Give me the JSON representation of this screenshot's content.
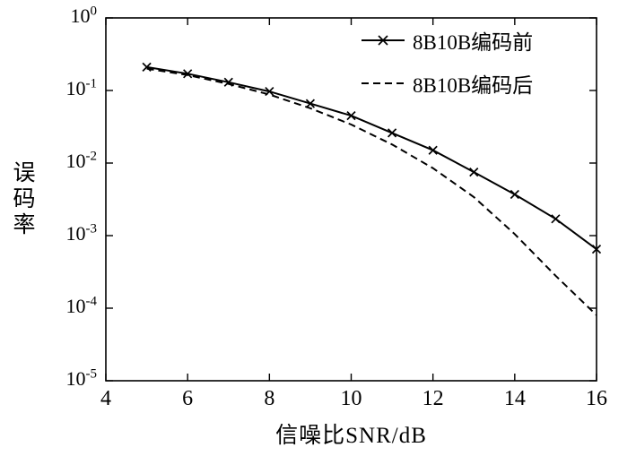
{
  "figure": {
    "background": "#ffffff",
    "line_color": "#000000"
  },
  "chart_data": {
    "type": "line",
    "title": "",
    "xlabel": "信噪比SNR/dB",
    "ylabel": "误码率",
    "xlim": [
      4,
      16
    ],
    "ylim": [
      1e-05,
      1
    ],
    "y_scale": "log",
    "grid": false,
    "legend_position": "top-right",
    "x_ticks": [
      4,
      6,
      8,
      10,
      12,
      14,
      16
    ],
    "y_ticks_exp": [
      0,
      -1,
      -2,
      -3,
      -4,
      -5
    ],
    "x": [
      5,
      6,
      7,
      8,
      9,
      10,
      11,
      12,
      13,
      14,
      15,
      16
    ],
    "series": [
      {
        "name": "8B10B编码前",
        "line_style": "solid",
        "marker": "x",
        "color": "#000000",
        "values": [
          0.21,
          0.17,
          0.13,
          0.097,
          0.066,
          0.045,
          0.026,
          0.015,
          0.0075,
          0.0037,
          0.0017,
          0.00065
        ]
      },
      {
        "name": "8B10B编码后",
        "line_style": "dashed",
        "marker": "none",
        "color": "#000000",
        "values": [
          0.2,
          0.163,
          0.123,
          0.088,
          0.057,
          0.034,
          0.018,
          0.0085,
          0.0034,
          0.00105,
          0.00028,
          8e-05
        ]
      }
    ]
  }
}
